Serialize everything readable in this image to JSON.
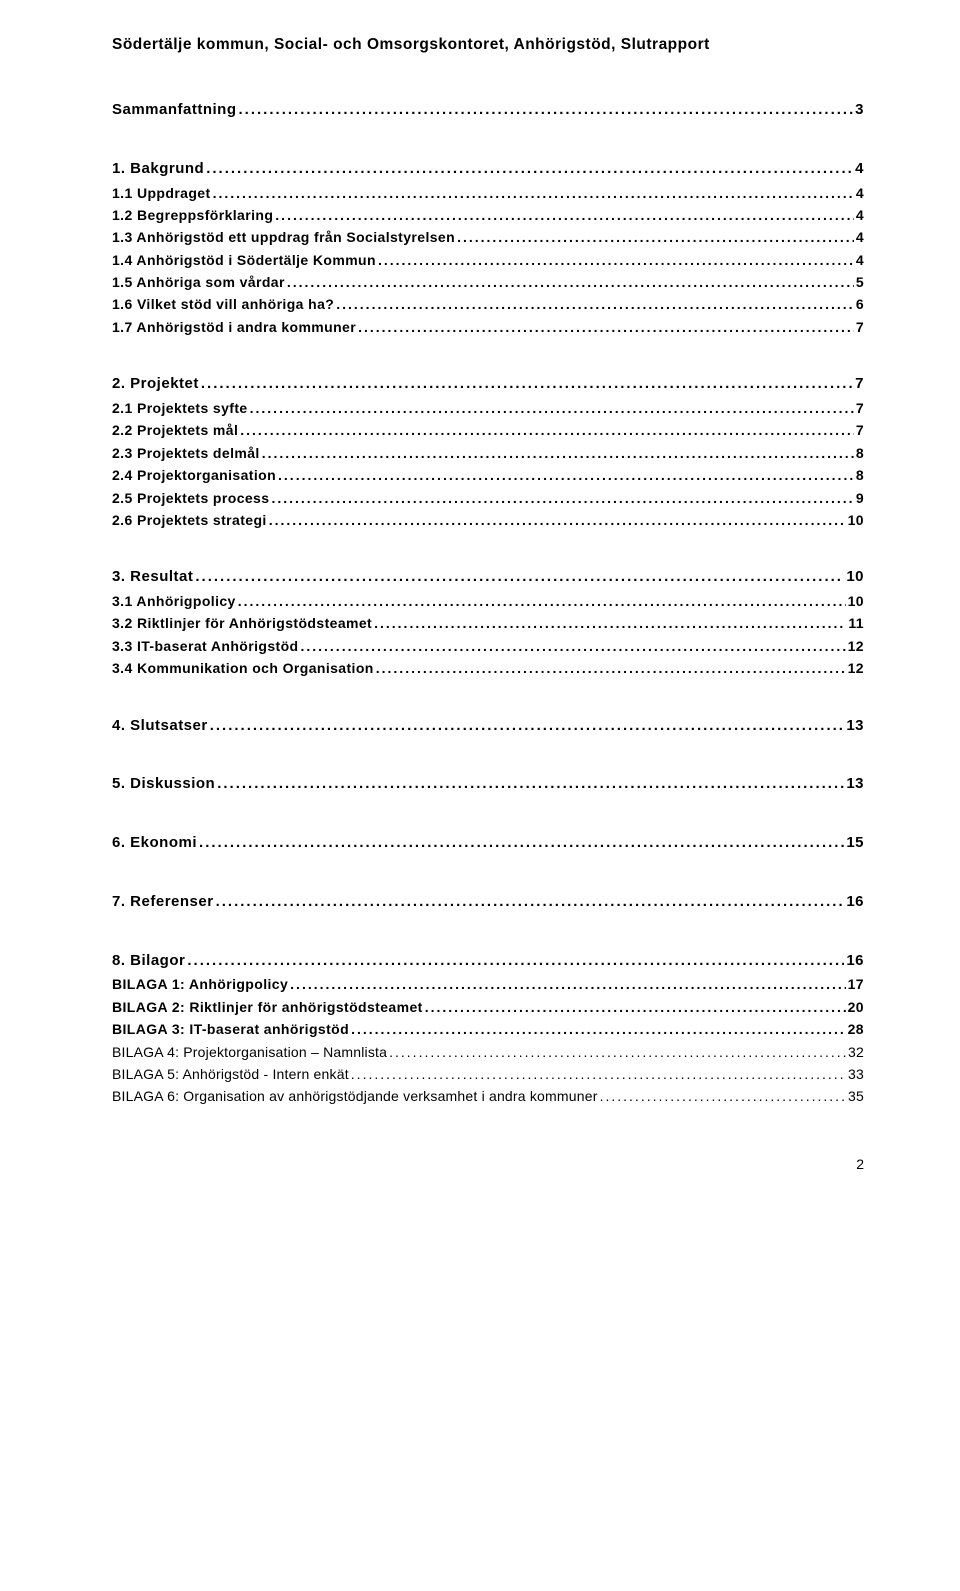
{
  "header": "Södertälje kommun, Social- och Omsorgskontoret, Anhörigstöd, Slutrapport",
  "blocks": [
    [
      {
        "style": "bold",
        "label": "Sammanfattning",
        "page": "3"
      }
    ],
    [
      {
        "style": "bold",
        "label": "1. Bakgrund",
        "page": "4"
      },
      {
        "style": "normal",
        "label": "1.1 Uppdraget",
        "page": "4"
      },
      {
        "style": "normal",
        "label": "1.2 Begreppsförklaring",
        "page": "4"
      },
      {
        "style": "normal",
        "label": "1.3 Anhörigstöd ett uppdrag från Socialstyrelsen",
        "page": "4"
      },
      {
        "style": "normal",
        "label": "1.4 Anhörigstöd i Södertälje Kommun",
        "page": "4"
      },
      {
        "style": "normal",
        "label": "1.5 Anhöriga som vårdar",
        "page": "5"
      },
      {
        "style": "normal",
        "label": "1.6 Vilket stöd vill anhöriga ha?",
        "page": "6"
      },
      {
        "style": "normal",
        "label": "1.7 Anhörigstöd i andra kommuner",
        "page": "7"
      }
    ],
    [
      {
        "style": "bold",
        "label": "2. Projektet",
        "page": "7"
      },
      {
        "style": "normal",
        "label": "2.1 Projektets syfte",
        "page": "7"
      },
      {
        "style": "normal",
        "label": "2.2 Projektets mål",
        "page": "7"
      },
      {
        "style": "normal",
        "label": "2.3 Projektets delmål",
        "page": "8"
      },
      {
        "style": "normal",
        "label": "2.4 Projektorganisation",
        "page": "8"
      },
      {
        "style": "normal",
        "label": "2.5 Projektets process",
        "page": "9"
      },
      {
        "style": "normal",
        "label": "2.6 Projektets strategi",
        "page": "10"
      }
    ],
    [
      {
        "style": "bold",
        "label": "3. Resultat",
        "page": "10"
      },
      {
        "style": "normal",
        "label": "3.1 Anhörigpolicy",
        "page": "10"
      },
      {
        "style": "normal",
        "label": "3.2 Riktlinjer för Anhörigstödsteamet",
        "page": "11"
      },
      {
        "style": "normal",
        "label": "3.3 IT-baserat Anhörigstöd",
        "page": "12"
      },
      {
        "style": "normal",
        "label": "3.4 Kommunikation och Organisation",
        "page": "12"
      }
    ],
    [
      {
        "style": "bold",
        "label": "4. Slutsatser",
        "page": "13"
      }
    ],
    [
      {
        "style": "bold",
        "label": "5. Diskussion",
        "page": "13"
      }
    ],
    [
      {
        "style": "bold",
        "label": "6. Ekonomi",
        "page": "15"
      }
    ],
    [
      {
        "style": "bold",
        "label": "7. Referenser",
        "page": "16"
      }
    ],
    [
      {
        "style": "bold",
        "label": "8. Bilagor",
        "page": "16"
      },
      {
        "style": "normal",
        "label": "BILAGA 1: Anhörigpolicy",
        "page": "17"
      },
      {
        "style": "normal",
        "label": "BILAGA 2: Riktlinjer för anhörigstödsteamet",
        "page": "20"
      },
      {
        "style": "normal",
        "label": "BILAGA 3: IT-baserat anhörigstöd",
        "page": "28"
      },
      {
        "style": "plain",
        "label": "BILAGA 4: Projektorganisation – Namnlista",
        "page": "32"
      },
      {
        "style": "plain",
        "label": "BILAGA 5: Anhörigstöd - Intern enkät",
        "page": "33"
      },
      {
        "style": "plain",
        "label": "BILAGA 6: Organisation av anhörigstödjande verksamhet i andra kommuner",
        "page": "35"
      }
    ]
  ],
  "pageNumber": "2"
}
